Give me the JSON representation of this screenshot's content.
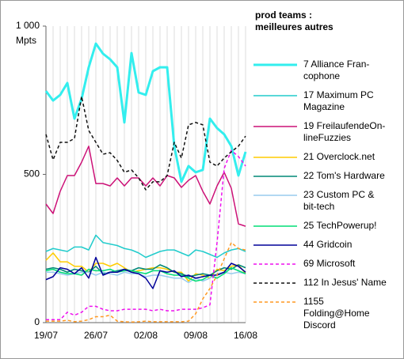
{
  "chart_data": {
    "type": "line",
    "legend_title": "prod teams :\nmeilleures autres",
    "y_label": "Mpts",
    "categories": [
      "19/07",
      null,
      null,
      null,
      null,
      null,
      null,
      "26/07",
      null,
      null,
      null,
      null,
      null,
      null,
      "02/08",
      null,
      null,
      null,
      null,
      null,
      null,
      "09/08",
      null,
      null,
      null,
      null,
      null,
      null,
      "16/08"
    ],
    "ylim": [
      0,
      1000
    ],
    "yticks": [
      0,
      500,
      {
        "value": 1000,
        "label": "1 000"
      }
    ],
    "grid": true,
    "series": [
      {
        "name": "7 Alliance Fran-\ncophone",
        "color": "#33eeee",
        "width": 3,
        "dashed": false,
        "values": [
          781,
          749,
          768,
          808,
          688,
          755,
          861,
          941,
          907,
          888,
          861,
          675,
          909,
          776,
          768,
          848,
          861,
          861,
          595,
          475,
          528,
          507,
          515,
          688,
          656,
          635,
          595,
          496,
          576
        ]
      },
      {
        "name": "17 Maximum PC\nMagazine",
        "color": "#22cccc",
        "width": 1.5,
        "dashed": false,
        "values": [
          240,
          250,
          245,
          240,
          255,
          255,
          245,
          295,
          270,
          265,
          260,
          250,
          245,
          235,
          220,
          230,
          240,
          245,
          245,
          235,
          225,
          245,
          240,
          230,
          220,
          235,
          245,
          250,
          240
        ]
      },
      {
        "name": "19 FreilaufendeOn-\nlineFuzzies",
        "color": "#cc1177",
        "width": 1.5,
        "dashed": false,
        "values": [
          400,
          368,
          443,
          496,
          496,
          541,
          595,
          469,
          469,
          461,
          488,
          461,
          488,
          488,
          461,
          488,
          461,
          496,
          488,
          456,
          480,
          496,
          443,
          400,
          461,
          507,
          453,
          333,
          325
        ]
      },
      {
        "name": "21 Overclock.net",
        "color": "#ffcc00",
        "width": 1.5,
        "dashed": false,
        "values": [
          210,
          235,
          205,
          205,
          190,
          190,
          170,
          200,
          200,
          190,
          200,
          185,
          170,
          175,
          180,
          185,
          185,
          180,
          170,
          170,
          140,
          165,
          160,
          150,
          180,
          175,
          190,
          195,
          165
        ]
      },
      {
        "name": "22 Tom's Hardware",
        "color": "#008877",
        "width": 1.5,
        "dashed": false,
        "values": [
          180,
          185,
          180,
          170,
          180,
          175,
          170,
          190,
          165,
          170,
          175,
          180,
          175,
          185,
          180,
          180,
          195,
          185,
          170,
          165,
          155,
          160,
          165,
          160,
          175,
          185,
          180,
          195,
          185
        ]
      },
      {
        "name": "23 Custom PC &\nbit-tech",
        "color": "#99ccee",
        "width": 1.5,
        "dashed": false,
        "values": [
          170,
          170,
          165,
          160,
          165,
          170,
          170,
          160,
          170,
          165,
          160,
          170,
          165,
          165,
          155,
          160,
          160,
          155,
          150,
          150,
          135,
          150,
          140,
          150,
          165,
          170,
          165,
          170,
          165
        ]
      },
      {
        "name": "25 TechPowerup!",
        "color": "#00dd77",
        "width": 1.5,
        "dashed": false,
        "values": [
          175,
          180,
          170,
          165,
          165,
          160,
          180,
          175,
          175,
          180,
          170,
          175,
          175,
          170,
          165,
          175,
          175,
          165,
          160,
          160,
          150,
          140,
          145,
          160,
          150,
          165,
          185,
          175,
          165
        ]
      },
      {
        "name": "44 Gridcoin",
        "color": "#000099",
        "width": 1.5,
        "dashed": false,
        "values": [
          145,
          155,
          185,
          180,
          165,
          185,
          150,
          220,
          160,
          170,
          170,
          180,
          170,
          165,
          150,
          115,
          175,
          170,
          175,
          155,
          160,
          150,
          155,
          160,
          160,
          170,
          200,
          190,
          170
        ]
      },
      {
        "name": "69 Microsoft",
        "color": "#ee11ee",
        "width": 1.5,
        "dashed": true,
        "values": [
          10,
          10,
          10,
          35,
          25,
          35,
          55,
          55,
          45,
          40,
          40,
          45,
          45,
          45,
          45,
          40,
          45,
          40,
          40,
          45,
          45,
          45,
          50,
          60,
          270,
          520,
          581,
          560,
          528
        ]
      },
      {
        "name": "112 In Jesus' Name",
        "color": "#111111",
        "width": 1.5,
        "dashed": true,
        "values": [
          635,
          549,
          608,
          608,
          621,
          763,
          648,
          608,
          568,
          573,
          547,
          507,
          515,
          488,
          448,
          475,
          475,
          496,
          608,
          555,
          667,
          675,
          667,
          541,
          528,
          555,
          576,
          595,
          629
        ]
      },
      {
        "name": "1155\nFolding@Home\nDiscord",
        "color": "#ff9922",
        "width": 1.5,
        "dashed": true,
        "values": [
          5,
          5,
          5,
          8,
          3,
          5,
          10,
          20,
          20,
          25,
          5,
          3,
          2,
          3,
          5,
          3,
          3,
          3,
          3,
          3,
          5,
          30,
          80,
          115,
          160,
          215,
          270,
          250,
          245
        ]
      }
    ]
  }
}
